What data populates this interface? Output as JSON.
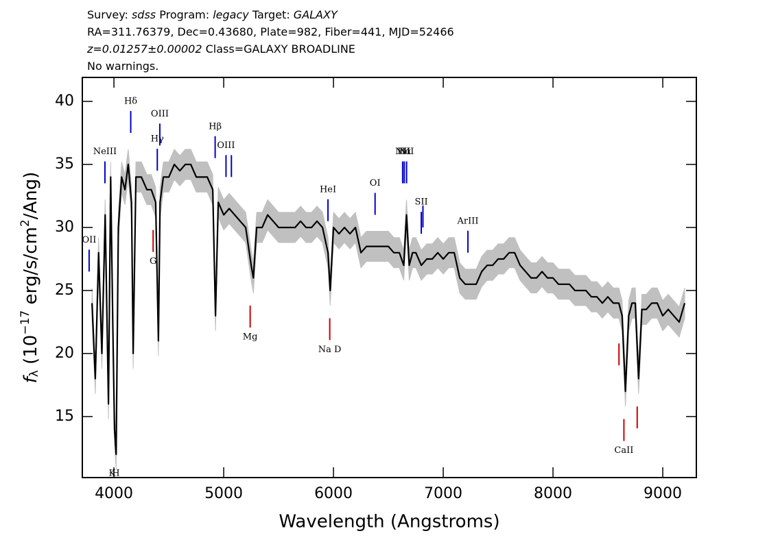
{
  "chart_data": {
    "type": "line",
    "header": [
      [
        {
          "text": "Survey: "
        },
        {
          "text": "sdss",
          "italic": true
        },
        {
          "text": " Program: "
        },
        {
          "text": "legacy",
          "italic": true
        },
        {
          "text": " Target: "
        },
        {
          "text": "GALAXY",
          "italic": true
        }
      ],
      [
        {
          "text": "RA=311.76379, Dec=0.43680, Plate=982, Fiber=441, MJD=52466"
        }
      ],
      [
        {
          "text": "z=0.01257±0.00002",
          "italic": true
        },
        {
          "text": " Class=GALAXY BROADLINE"
        }
      ],
      [
        {
          "text": "No warnings."
        }
      ]
    ],
    "xlabel": "Wavelength (Angstroms)",
    "ylabel": [
      {
        "text": "f",
        "italic": true
      },
      {
        "text": "λ",
        "baseline": "sub"
      },
      {
        "text": " (10"
      },
      {
        "text": "−17",
        "baseline": "super"
      },
      {
        "text": " erg/s/cm"
      },
      {
        "text": "2",
        "baseline": "super"
      },
      {
        "text": "/Ang)"
      }
    ],
    "xlim": [
      3712,
      9306
    ],
    "ylim": [
      10.16,
      41.9
    ],
    "xticks": [
      4000,
      5000,
      6000,
      7000,
      8000,
      9000
    ],
    "yticks": [
      15,
      20,
      25,
      30,
      35,
      40
    ],
    "color": "#000000",
    "error_color": "#c0c0c0",
    "error": 1.2,
    "x": [
      3800,
      3830,
      3860,
      3890,
      3920,
      3950,
      3970,
      3990,
      4005,
      4020,
      4040,
      4070,
      4100,
      4130,
      4160,
      4175,
      4200,
      4250,
      4300,
      4340,
      4380,
      4405,
      4420,
      4450,
      4500,
      4550,
      4600,
      4650,
      4700,
      4750,
      4800,
      4850,
      4900,
      4925,
      4950,
      5000,
      5050,
      5100,
      5150,
      5200,
      5250,
      5270,
      5300,
      5350,
      5400,
      5450,
      5500,
      5550,
      5600,
      5650,
      5700,
      5750,
      5800,
      5850,
      5900,
      5950,
      5970,
      6000,
      6050,
      6100,
      6150,
      6200,
      6250,
      6300,
      6350,
      6400,
      6450,
      6500,
      6550,
      6600,
      6640,
      6665,
      6690,
      6720,
      6750,
      6800,
      6850,
      6900,
      6950,
      7000,
      7050,
      7100,
      7150,
      7200,
      7250,
      7300,
      7350,
      7400,
      7450,
      7500,
      7550,
      7600,
      7650,
      7700,
      7750,
      7800,
      7850,
      7900,
      7950,
      8000,
      8050,
      8100,
      8150,
      8200,
      8250,
      8300,
      8350,
      8400,
      8450,
      8500,
      8550,
      8600,
      8630,
      8660,
      8690,
      8720,
      8750,
      8780,
      8810,
      8850,
      8900,
      8950,
      9000,
      9050,
      9100,
      9150,
      9200
    ],
    "values": [
      24,
      18,
      28,
      20,
      31,
      16,
      34,
      22,
      14,
      12,
      30,
      34,
      33,
      35,
      32,
      20,
      34,
      34,
      33,
      33,
      32,
      21,
      32,
      34,
      34,
      35,
      34.5,
      35,
      35,
      34,
      34,
      34,
      33,
      23,
      32,
      31,
      31.5,
      31,
      30.5,
      30,
      27,
      26,
      30,
      30,
      31,
      30.5,
      30,
      30,
      30,
      30,
      30.5,
      30,
      30,
      30.5,
      30,
      28,
      25,
      30,
      29.5,
      30,
      29.5,
      30,
      28,
      28.5,
      28.5,
      28.5,
      28.5,
      28.5,
      28,
      28,
      27,
      31,
      27,
      28,
      28,
      27,
      27.5,
      27.5,
      28,
      27.5,
      28,
      28,
      26,
      25.5,
      25.5,
      25.5,
      26.5,
      27,
      27,
      27.5,
      27.5,
      28,
      28,
      27,
      26.5,
      26,
      26,
      26.5,
      26,
      26,
      25.5,
      25.5,
      25.5,
      25,
      25,
      25,
      24.5,
      24.5,
      24,
      24.5,
      24,
      24,
      23,
      17,
      23,
      24,
      24,
      18,
      23.5,
      23.5,
      24,
      24,
      23,
      23.5,
      23,
      22.5,
      24
    ],
    "emission_color": "#0000cc",
    "absorption_color": "#cc0000",
    "lines": [
      {
        "label": "OII",
        "x": 3774,
        "kind": "emission"
      },
      {
        "label": "NeIII",
        "x": 3918,
        "kind": "emission"
      },
      {
        "label": "Hδ",
        "x": 4153,
        "kind": "emission"
      },
      {
        "label": "Hγ",
        "x": 4395,
        "kind": "emission"
      },
      {
        "label": "OIII",
        "x": 4418,
        "kind": "emission"
      },
      {
        "label": "Hβ",
        "x": 4922,
        "kind": "emission"
      },
      {
        "label": "OIII",
        "x": 5021,
        "kind": "emission"
      },
      {
        "label": null,
        "x": 5070,
        "kind": "emission"
      },
      {
        "label": "HeI",
        "x": 5950,
        "kind": "emission"
      },
      {
        "label": "OI",
        "x": 6379,
        "kind": "emission"
      },
      {
        "label": "NII",
        "x": 6630,
        "kind": "emission"
      },
      {
        "label": "Hα",
        "x": 6645,
        "kind": "emission"
      },
      {
        "label": "NII",
        "x": 6666,
        "kind": "emission"
      },
      {
        "label": "SII",
        "x": 6800,
        "kind": "emission"
      },
      {
        "label": null,
        "x": 6815,
        "kind": "emission"
      },
      {
        "label": "ArIII",
        "x": 7225,
        "kind": "emission"
      },
      {
        "label": "K",
        "x": 3983,
        "kind": "absorption"
      },
      {
        "label": "H",
        "x": 4018,
        "kind": "absorption"
      },
      {
        "label": "G",
        "x": 4357,
        "kind": "absorption"
      },
      {
        "label": "Mg",
        "x": 5241,
        "kind": "absorption"
      },
      {
        "label": "Na D",
        "x": 5966,
        "kind": "absorption"
      },
      {
        "label": null,
        "x": 8601,
        "kind": "absorption"
      },
      {
        "label": "CaII",
        "x": 8646,
        "kind": "absorption"
      },
      {
        "label": null,
        "x": 8767,
        "kind": "absorption"
      }
    ]
  }
}
